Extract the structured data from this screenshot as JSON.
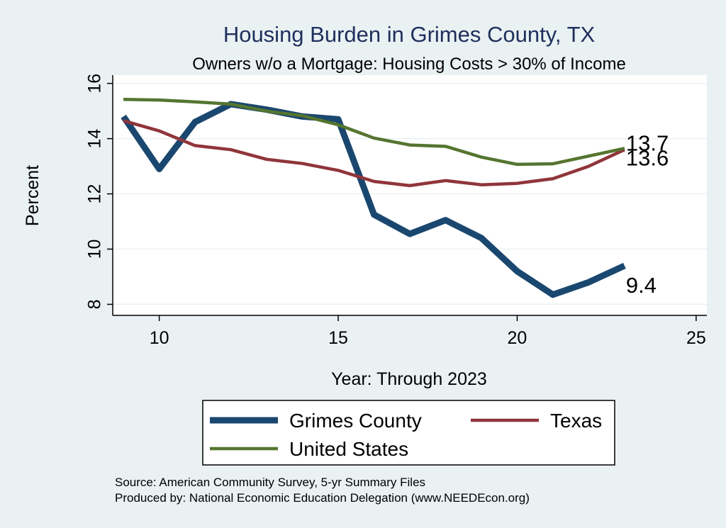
{
  "chart_data": {
    "type": "line",
    "title": "Housing Burden in Grimes County, TX",
    "subtitle": "Owners w/o a Mortgage: Housing Costs > 30% of Income",
    "xlabel": "Year: Through 2023",
    "ylabel": "Percent",
    "xlim": [
      8.7,
      25.3
    ],
    "ylim": [
      7.6,
      16.3
    ],
    "x_ticks": [
      10,
      15,
      20,
      25
    ],
    "y_ticks": [
      8,
      10,
      12,
      14,
      16
    ],
    "grid": true,
    "legend_position": "bottom",
    "x": [
      9,
      10,
      11,
      12,
      13,
      14,
      15,
      16,
      17,
      18,
      19,
      20,
      21,
      22,
      23
    ],
    "series": [
      {
        "name": "Grimes County",
        "color": "#1a476f",
        "width": 9,
        "values": [
          14.8,
          12.9,
          14.6,
          15.25,
          15.05,
          14.8,
          14.7,
          11.25,
          10.55,
          11.05,
          10.4,
          9.2,
          8.35,
          8.8,
          9.4
        ],
        "end_label": "9.4"
      },
      {
        "name": "Texas",
        "color": "#90353b",
        "width": 4.5,
        "values": [
          14.65,
          14.28,
          13.75,
          13.6,
          13.25,
          13.1,
          12.85,
          12.45,
          12.3,
          12.48,
          12.33,
          12.38,
          12.55,
          13.0,
          13.6
        ],
        "end_label": "13.6"
      },
      {
        "name": "United States",
        "color": "#55752f",
        "width": 4.5,
        "values": [
          15.42,
          15.4,
          15.33,
          15.25,
          15.0,
          14.83,
          14.5,
          14.02,
          13.77,
          13.72,
          13.33,
          13.07,
          13.09,
          13.37,
          13.65
        ],
        "end_label": "13.7"
      }
    ],
    "notes": [
      "Source: American Community Survey, 5-yr Summary Files",
      "Produced by: National Economic Education Delegation (www.NEEDEcon.org)"
    ]
  }
}
